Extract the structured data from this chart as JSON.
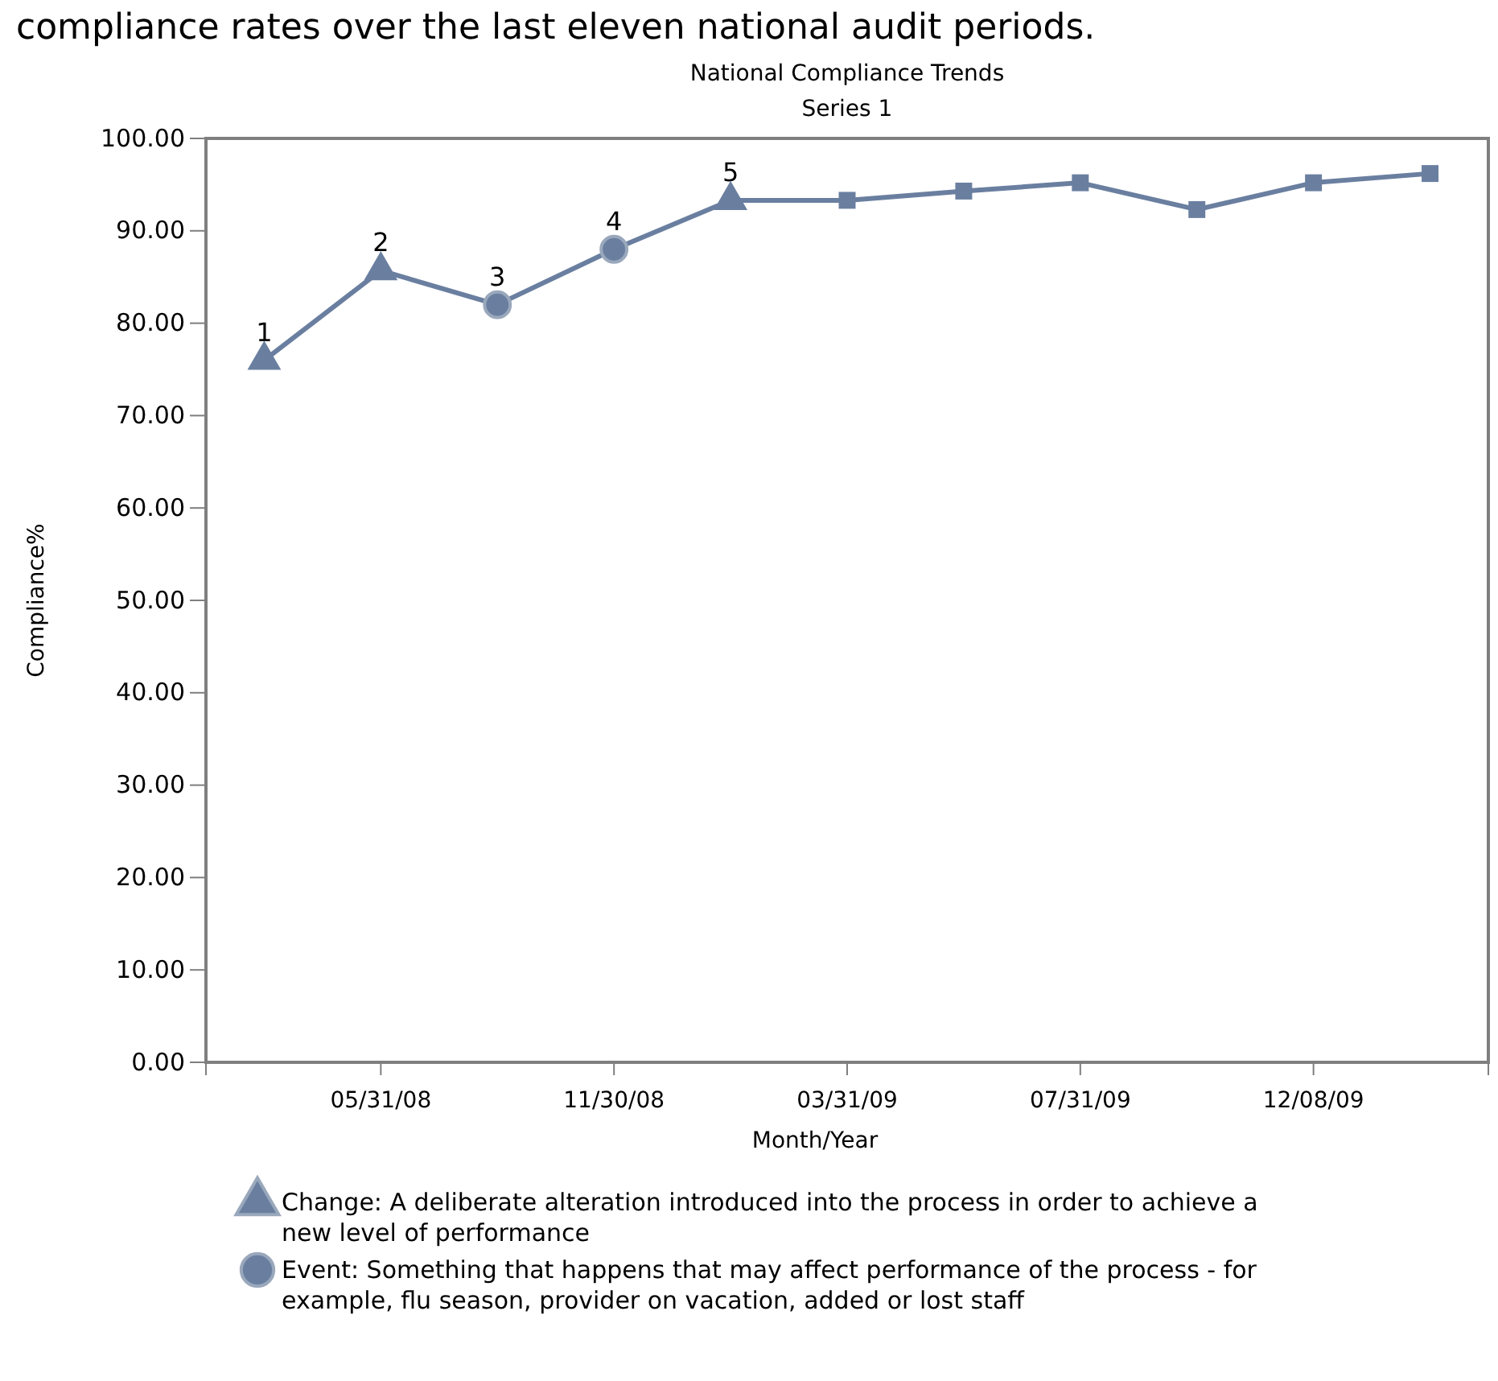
{
  "chart_data": {
    "type": "line",
    "title": "National Compliance Trends",
    "subtitle": "Series 1",
    "xlabel": "Month/Year",
    "ylabel": "Compliance%",
    "annotations": [
      "compliance rates over the last eleven national audit periods.",
      {
        "text": "1",
        "y": 76
      },
      {
        "text": "2",
        "y": 85.7
      },
      {
        "text": "3",
        "y": 82
      },
      {
        "text": "4",
        "y": 88
      },
      {
        "text": "5",
        "y": 93.3
      }
    ],
    "categories": [
      null,
      "05/31/08",
      null,
      "11/30/08",
      null,
      "03/31/09",
      null,
      "07/31/09",
      null,
      "12/08/09",
      null
    ],
    "ylim": [
      0,
      100
    ],
    "yticks": [
      {
        "value": 0,
        "label": "0.00"
      },
      {
        "value": 10,
        "label": "10.00"
      },
      {
        "value": 20,
        "label": "20.00"
      },
      {
        "value": 30,
        "label": "30.00"
      },
      {
        "value": 40,
        "label": "40.00"
      },
      {
        "value": 50,
        "label": "50.00"
      },
      {
        "value": 60,
        "label": "60.00"
      },
      {
        "value": 70,
        "label": "70.00"
      },
      {
        "value": 80,
        "label": "80.00"
      },
      {
        "value": 90,
        "label": "90.00"
      },
      {
        "value": 100,
        "label": "100.00"
      }
    ],
    "grid": false,
    "legend": "bottom",
    "line_style": "solid",
    "series": [
      {
        "marker": "none",
        "color": "#6a7fa0",
        "values": [
          76,
          85.7,
          82,
          88,
          93.3,
          93.3,
          94.3,
          95.2,
          92.3,
          95.2,
          96.2
        ]
      },
      {
        "type": "scatter",
        "marker": "square",
        "color": "#6a7fa0",
        "values": [
          null,
          null,
          null,
          null,
          null,
          93.3,
          94.3,
          95.2,
          92.3,
          95.2,
          96.2
        ]
      },
      {
        "name": "Change: A deliberate alteration introduced into the process in order to achieve a new level of performance",
        "type": "scatter",
        "marker": "triangle",
        "color": "#6a7fa0",
        "values": [
          76,
          85.7,
          null,
          null,
          93.3,
          null,
          null,
          null,
          null,
          null,
          null
        ]
      },
      {
        "name": "Event: Something that happens that may affect performance of the process - for example, flu season, provider on vacation, added or lost staff",
        "type": "scatter",
        "marker": "circle",
        "color": "#6a7fa0",
        "values": [
          null,
          null,
          82,
          88,
          null,
          null,
          null,
          null,
          null,
          null,
          null
        ]
      }
    ]
  }
}
